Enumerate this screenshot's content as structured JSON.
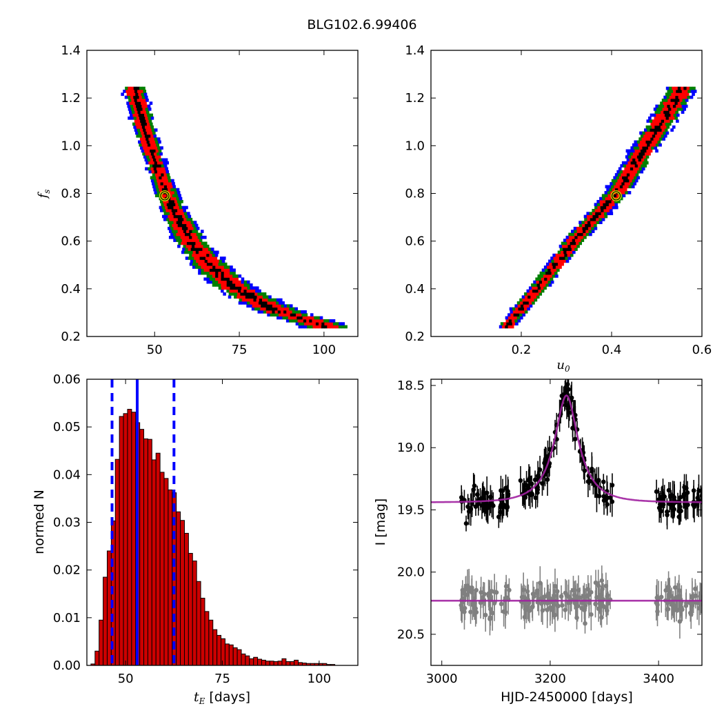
{
  "figure": {
    "title": "BLG102.6.99406"
  },
  "chart_data": [
    {
      "id": "fs_vs_tE",
      "type": "heatmap",
      "xlabel": "",
      "ylabel": "f_s",
      "xlim": [
        30,
        110
      ],
      "ylim": [
        0.2,
        1.4
      ],
      "xticks": [
        50,
        75,
        100
      ],
      "yticks": [
        0.2,
        0.4,
        0.6,
        0.8,
        1.0,
        1.2,
        1.4
      ],
      "xtick_labels": [
        "50",
        "75",
        "100"
      ],
      "ytick_labels": [
        "0.2",
        "0.4",
        "0.6",
        "0.8",
        "1.0",
        "1.2",
        "1.4"
      ],
      "levels": [
        {
          "name": "",
          "color": "#0000ff"
        },
        {
          "name": "",
          "color": "#008000"
        },
        {
          "name": "",
          "color": "#ff0000"
        },
        {
          "name": "",
          "color": "#000000"
        }
      ],
      "ridge": {
        "f_s": [
          1.24,
          1.1,
          1.0,
          0.9,
          0.8,
          0.7,
          0.6,
          0.5,
          0.4,
          0.3,
          0.24
        ],
        "x": [
          43.5,
          46.0,
          48.0,
          50.5,
          53.0,
          56.0,
          60.0,
          65.5,
          73.0,
          86.0,
          100.0
        ]
      },
      "best_fit": {
        "x": 53.0,
        "y": 0.79
      }
    },
    {
      "id": "fs_vs_u0",
      "type": "heatmap",
      "xlabel": "u_0",
      "ylabel": "",
      "xlim": [
        0.0,
        0.6
      ],
      "ylim": [
        0.2,
        1.4
      ],
      "xticks": [
        0.2,
        0.4,
        0.6
      ],
      "yticks": [
        0.2,
        0.4,
        0.6,
        0.8,
        1.0,
        1.2,
        1.4
      ],
      "xtick_labels": [
        "0.2",
        "0.4",
        "0.6"
      ],
      "ytick_labels": [
        "0.2",
        "0.4",
        "0.6",
        "0.8",
        "1.0",
        "1.2",
        "1.4"
      ],
      "levels": [
        {
          "name": "",
          "color": "#0000ff"
        },
        {
          "name": "",
          "color": "#008000"
        },
        {
          "name": "",
          "color": "#ff0000"
        },
        {
          "name": "",
          "color": "#000000"
        }
      ],
      "ridge": {
        "f_s": [
          0.24,
          0.4,
          0.6,
          0.8,
          1.0,
          1.24
        ],
        "x": [
          0.165,
          0.235,
          0.315,
          0.41,
          0.475,
          0.555
        ]
      },
      "best_fit": {
        "x": 0.41,
        "y": 0.79
      }
    },
    {
      "id": "tE_histogram",
      "type": "bar",
      "xlabel": "t_E [days]",
      "ylabel": "normed N",
      "xlim": [
        40,
        110
      ],
      "ylim": [
        0.0,
        0.06
      ],
      "xticks": [
        50,
        75,
        100
      ],
      "yticks": [
        0.0,
        0.01,
        0.02,
        0.03,
        0.04,
        0.05,
        0.06
      ],
      "xtick_labels": [
        "50",
        "75",
        "100"
      ],
      "ytick_labels": [
        "0.00",
        "0.01",
        "0.02",
        "0.03",
        "0.04",
        "0.05",
        "0.06"
      ],
      "bar_color": "#cc0000",
      "bin_start": 40.0,
      "bin_width": 1.05,
      "values": [
        0.0,
        0.0003,
        0.003,
        0.0095,
        0.0185,
        0.024,
        0.0303,
        0.0432,
        0.0522,
        0.0528,
        0.0537,
        0.0531,
        0.0509,
        0.0495,
        0.0475,
        0.0474,
        0.0431,
        0.0445,
        0.0405,
        0.0392,
        0.0368,
        0.0362,
        0.0322,
        0.0304,
        0.0277,
        0.0235,
        0.0219,
        0.0176,
        0.0141,
        0.0113,
        0.0095,
        0.0075,
        0.0063,
        0.0056,
        0.0045,
        0.0043,
        0.0037,
        0.0033,
        0.0024,
        0.002,
        0.0014,
        0.0017,
        0.0013,
        0.0011,
        0.0009,
        0.0009,
        0.0008,
        0.0009,
        0.0014,
        0.0008,
        0.0008,
        0.0011,
        0.0006,
        0.0005,
        0.0004,
        0.0004,
        0.0004,
        0.0004,
        0.0004,
        0.0002,
        0.0002
      ],
      "vlines": [
        {
          "x": 53.0,
          "style": "solid",
          "color": "#0000ff"
        },
        {
          "x": 46.5,
          "style": "dashed",
          "color": "#0000ff"
        },
        {
          "x": 62.5,
          "style": "dashed",
          "color": "#0000ff"
        }
      ]
    },
    {
      "id": "light_curve",
      "type": "scatter",
      "xlabel": "HJD-2450000 [days]",
      "ylabel": "I [mag]",
      "xlim": [
        2980,
        3480
      ],
      "ylim": [
        20.75,
        18.45
      ],
      "y_inverted": true,
      "xticks": [
        3000,
        3200,
        3400
      ],
      "yticks": [
        18.5,
        19.0,
        19.5,
        20.0,
        20.5
      ],
      "xtick_labels": [
        "3000",
        "3200",
        "3400"
      ],
      "ytick_labels": [
        "18.5",
        "19.0",
        "19.5",
        "20.0",
        "20.5"
      ],
      "model_color": "#a020a0",
      "series": [
        {
          "color": "#000000",
          "model": {
            "baseline": 19.44,
            "peak": 18.58,
            "t0": 3230,
            "tE": 53.0,
            "u0": 0.41
          },
          "observing_windows": [
            [
              3035,
              3125
            ],
            [
              3145,
              3315
            ],
            [
              3395,
              3480
            ]
          ],
          "scatter_mag": 0.12,
          "error_bar": 0.09
        },
        {
          "color": "#808080",
          "model": {
            "baseline": 20.23,
            "peak": 20.23,
            "t0": 3230,
            "tE": 53.0,
            "u0": 0.41
          },
          "observing_windows": [
            [
              3035,
              3125
            ],
            [
              3145,
              3315
            ],
            [
              3395,
              3480
            ]
          ],
          "scatter_mag": 0.13,
          "error_bar": 0.1
        }
      ]
    }
  ]
}
